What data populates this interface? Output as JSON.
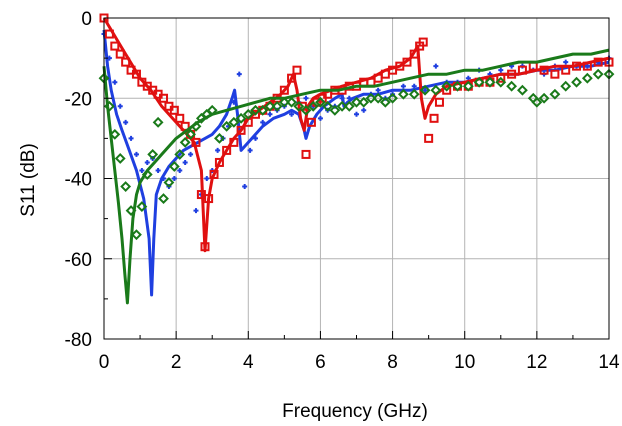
{
  "chart_data": {
    "type": "line",
    "xlabel": "Frequency (GHz)",
    "ylabel": "S11 (dB)",
    "xlim": [
      0,
      14
    ],
    "ylim": [
      -80,
      0
    ],
    "xticks": [
      0,
      2,
      4,
      6,
      8,
      10,
      12,
      14
    ],
    "yticks": [
      0,
      -20,
      -40,
      -60,
      -80
    ],
    "grid": true,
    "series": [
      {
        "color": "#1f3fe0",
        "style": "line",
        "x": [
          0,
          0.1,
          0.2,
          0.35,
          0.5,
          0.7,
          0.9,
          1.1,
          1.25,
          1.32,
          1.38,
          1.45,
          1.6,
          1.8,
          2.0,
          2.2,
          2.4,
          2.6,
          2.8,
          3.0,
          3.2,
          3.4,
          3.55,
          3.62,
          3.7,
          3.8,
          3.9,
          4.1,
          4.4,
          4.7,
          5.0,
          5.2,
          5.4,
          5.55,
          5.6,
          5.7,
          5.9,
          6.1,
          6.4,
          6.6,
          6.65,
          6.75,
          6.9,
          7.2,
          7.6,
          8.0,
          8.5,
          9.0,
          9.5,
          10.0,
          10.5,
          11.0,
          11.5,
          12.0,
          12.5,
          13.0,
          13.5,
          14.0
        ],
        "y": [
          -3,
          -12,
          -18,
          -24,
          -28,
          -33,
          -38,
          -45,
          -55,
          -69,
          -55,
          -44,
          -40,
          -37,
          -35,
          -33,
          -32,
          -31,
          -30,
          -29,
          -27,
          -24,
          -20,
          -18,
          -24,
          -33,
          -32,
          -30,
          -27,
          -25,
          -24,
          -23,
          -24,
          -28,
          -30,
          -27,
          -24,
          -22,
          -20,
          -19,
          -22,
          -21,
          -20,
          -19,
          -19,
          -18,
          -18,
          -17,
          -16,
          -16,
          -15,
          -14,
          -14,
          -13,
          -13,
          -12,
          -12,
          -11
        ]
      },
      {
        "color": "#1f3fe0",
        "style": "points",
        "marker": "cross",
        "x": [
          0,
          0.15,
          0.3,
          0.45,
          0.6,
          0.75,
          0.9,
          1.05,
          1.2,
          1.35,
          1.5,
          1.65,
          1.8,
          1.95,
          2.1,
          2.25,
          2.4,
          2.55,
          2.7,
          2.85,
          3.0,
          3.15,
          3.3,
          3.45,
          3.6,
          3.75,
          3.9,
          4.05,
          4.2,
          4.4,
          4.6,
          4.8,
          5.0,
          5.2,
          5.4,
          5.6,
          5.8,
          6.0,
          6.2,
          6.4,
          6.6,
          6.8,
          7.0,
          7.2,
          7.4,
          7.6,
          7.8,
          8.0,
          8.3,
          8.6,
          8.9,
          9.2,
          9.5,
          9.8,
          10.1,
          10.4,
          10.7,
          11.0,
          11.3,
          11.6,
          11.9,
          12.2,
          12.5,
          12.8,
          13.1,
          13.4,
          13.7,
          14.0
        ],
        "y": [
          -4,
          -10,
          -16,
          -22,
          -26,
          -30,
          -34,
          -38,
          -36,
          -35,
          -38,
          -40,
          -42,
          -40,
          -38,
          -36,
          -34,
          -48,
          -44,
          -40,
          -38,
          -33,
          -30,
          -27,
          -21,
          -14,
          -42,
          -33,
          -30,
          -26,
          -24,
          -23,
          -22,
          -24,
          -21,
          -20,
          -22,
          -25,
          -23,
          -22,
          -20,
          -20,
          -24,
          -23,
          -19,
          -18,
          -20,
          -19,
          -17,
          -17,
          -18,
          -12,
          -16,
          -16,
          -15,
          -13,
          -14,
          -13,
          -12,
          -12,
          -13,
          -14,
          -12,
          -11,
          -12,
          -12,
          -11,
          -10
        ]
      },
      {
        "color": "#e01010",
        "style": "line",
        "x": [
          0,
          0.2,
          0.4,
          0.6,
          0.8,
          1.0,
          1.3,
          1.6,
          1.9,
          2.2,
          2.5,
          2.7,
          2.8,
          2.9,
          3.0,
          3.2,
          3.4,
          3.6,
          3.8,
          4.0,
          4.3,
          4.6,
          4.9,
          5.1,
          5.25,
          5.35,
          5.45,
          5.55,
          5.65,
          5.8,
          6.0,
          6.3,
          6.6,
          7.0,
          7.4,
          7.8,
          8.2,
          8.5,
          8.7,
          8.8,
          8.9,
          9.0,
          9.2,
          9.5,
          10.0,
          10.5,
          11.0,
          11.5,
          12.0,
          12.5,
          13.0,
          13.5,
          14.0
        ],
        "y": [
          0,
          -3,
          -6,
          -9,
          -12,
          -15,
          -18,
          -22,
          -25,
          -28,
          -31,
          -38,
          -58,
          -45,
          -40,
          -36,
          -33,
          -30,
          -28,
          -25,
          -23,
          -21,
          -19,
          -17,
          -14,
          -18,
          -25,
          -28,
          -22,
          -20,
          -19,
          -18,
          -17,
          -16,
          -15,
          -13,
          -12,
          -10,
          -7,
          -20,
          -25,
          -22,
          -19,
          -17,
          -16,
          -15,
          -14,
          -14,
          -13,
          -12,
          -12,
          -11,
          -10
        ]
      },
      {
        "color": "#e01010",
        "style": "points",
        "marker": "square",
        "x": [
          0,
          0.15,
          0.3,
          0.45,
          0.6,
          0.75,
          0.9,
          1.05,
          1.2,
          1.35,
          1.5,
          1.65,
          1.8,
          1.95,
          2.1,
          2.25,
          2.4,
          2.55,
          2.7,
          2.8,
          2.9,
          3.05,
          3.2,
          3.4,
          3.6,
          3.8,
          4.0,
          4.2,
          4.4,
          4.6,
          4.8,
          5.0,
          5.2,
          5.35,
          5.5,
          5.6,
          5.75,
          5.9,
          6.05,
          6.2,
          6.4,
          6.6,
          6.8,
          7.0,
          7.2,
          7.4,
          7.6,
          7.8,
          8.0,
          8.2,
          8.4,
          8.6,
          8.75,
          8.85,
          9.0,
          9.15,
          9.3,
          9.5,
          9.8,
          10.1,
          10.4,
          10.7,
          11.0,
          11.3,
          11.6,
          11.9,
          12.2,
          12.5,
          12.8,
          13.1,
          13.4,
          13.7,
          14.0
        ],
        "y": [
          0,
          -4,
          -7,
          -9,
          -11,
          -13,
          -14,
          -16,
          -17,
          -18,
          -19,
          -20,
          -22,
          -23,
          -25,
          -27,
          -29,
          -31,
          -44,
          -57,
          -45,
          -39,
          -36,
          -33,
          -31,
          -28,
          -26,
          -24,
          -23,
          -22,
          -20,
          -18,
          -15,
          -13,
          -22,
          -34,
          -26,
          -21,
          -20,
          -19,
          -18,
          -18,
          -17,
          -17,
          -16,
          -16,
          -15,
          -14,
          -13,
          -12,
          -11,
          -9,
          -7,
          -6,
          -30,
          -25,
          -21,
          -18,
          -17,
          -17,
          -16,
          -16,
          -15,
          -14,
          -13,
          -12,
          -13,
          -14,
          -13,
          -12,
          -12,
          -11,
          -11
        ]
      },
      {
        "color": "#1a7a1a",
        "style": "line",
        "x": [
          0,
          0.1,
          0.2,
          0.3,
          0.4,
          0.5,
          0.58,
          0.65,
          0.72,
          0.8,
          0.9,
          1.0,
          1.2,
          1.4,
          1.6,
          1.8,
          2.0,
          2.3,
          2.6,
          3.0,
          3.4,
          3.8,
          4.2,
          4.6,
          5.0,
          5.5,
          6.0,
          6.5,
          7.0,
          7.5,
          8.0,
          8.5,
          9.0,
          9.5,
          10.0,
          10.5,
          11.0,
          11.5,
          12.0,
          12.5,
          13.0,
          13.5,
          14.0
        ],
        "y": [
          -12,
          -22,
          -30,
          -38,
          -46,
          -55,
          -64,
          -71,
          -60,
          -50,
          -44,
          -41,
          -38,
          -36,
          -34,
          -32,
          -30,
          -28,
          -26,
          -24,
          -23,
          -22,
          -21,
          -20,
          -20,
          -19,
          -18,
          -18,
          -17,
          -17,
          -16,
          -15,
          -14,
          -14,
          -13,
          -13,
          -12,
          -11,
          -11,
          -10,
          -9,
          -9,
          -8
        ]
      },
      {
        "color": "#1a7a1a",
        "style": "points",
        "marker": "diamond",
        "x": [
          0,
          0.15,
          0.3,
          0.45,
          0.6,
          0.75,
          0.9,
          1.05,
          1.2,
          1.35,
          1.5,
          1.65,
          1.8,
          1.95,
          2.1,
          2.25,
          2.4,
          2.55,
          2.7,
          2.85,
          3.0,
          3.2,
          3.4,
          3.6,
          3.8,
          4.0,
          4.2,
          4.4,
          4.6,
          4.8,
          5.0,
          5.2,
          5.4,
          5.6,
          5.8,
          6.0,
          6.2,
          6.4,
          6.6,
          6.8,
          7.0,
          7.2,
          7.4,
          7.6,
          7.8,
          8.0,
          8.3,
          8.6,
          8.9,
          9.2,
          9.5,
          9.8,
          10.1,
          10.4,
          10.7,
          11.0,
          11.3,
          11.6,
          11.9,
          12.0,
          12.2,
          12.5,
          12.8,
          13.1,
          13.4,
          13.7,
          14.0
        ],
        "y": [
          -15,
          -22,
          -29,
          -35,
          -42,
          -48,
          -54,
          -47,
          -39,
          -34,
          -26,
          -45,
          -41,
          -37,
          -34,
          -31,
          -29,
          -27,
          -25,
          -24,
          -23,
          -30,
          -27,
          -26,
          -25,
          -24,
          -23,
          -23,
          -22,
          -22,
          -21,
          -21,
          -22,
          -23,
          -22,
          -21,
          -22,
          -23,
          -22,
          -22,
          -21,
          -21,
          -20,
          -20,
          -21,
          -20,
          -19,
          -19,
          -18,
          -18,
          -17,
          -17,
          -17,
          -16,
          -16,
          -16,
          -17,
          -18,
          -20,
          -21,
          -20,
          -19,
          -17,
          -16,
          -15,
          -14,
          -14
        ]
      }
    ]
  }
}
